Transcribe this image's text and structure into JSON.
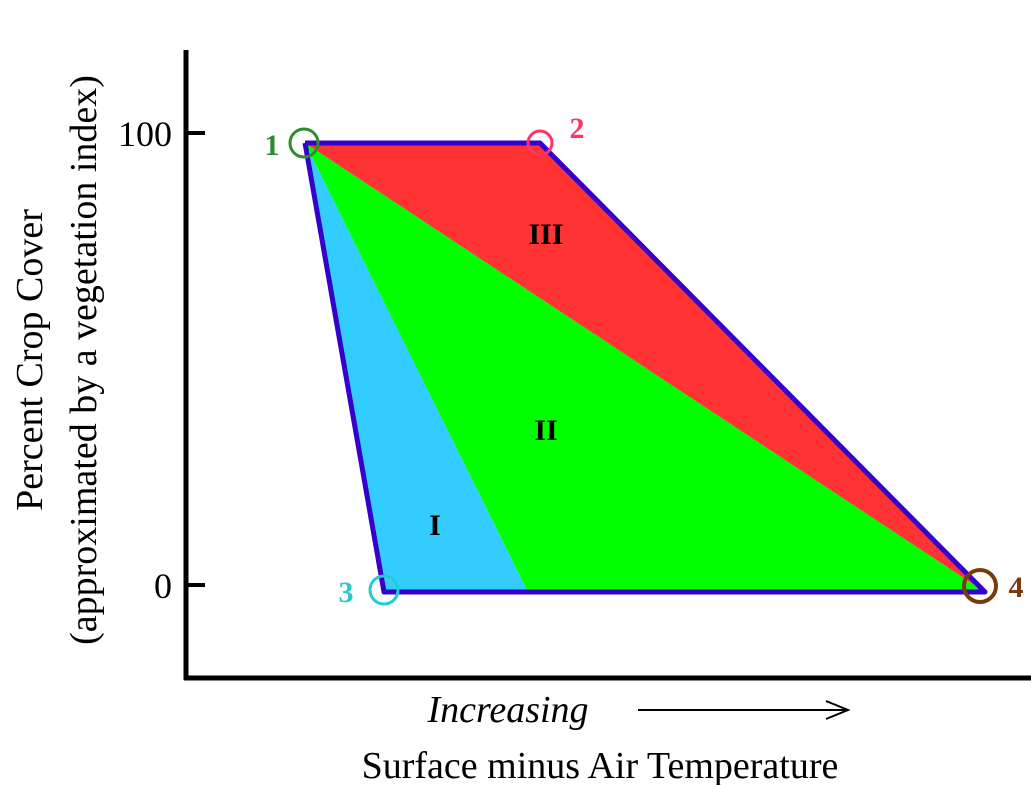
{
  "axes": {
    "y_label_line1": "Percent Crop Cover",
    "y_label_line2": "(approximated by a vegetation index)",
    "x_label_direction": "Increasing",
    "x_label": "Surface minus Air Temperature",
    "y_ticks": [
      "100",
      "0"
    ]
  },
  "regions": {
    "r1": {
      "label": "I",
      "color": "#33ccff"
    },
    "r2": {
      "label": "II",
      "color": "#00ff00"
    },
    "r3": {
      "label": "III",
      "color": "#ff3333"
    }
  },
  "points": {
    "p1": {
      "label": "1",
      "color": "#2e8b2e"
    },
    "p2": {
      "label": "2",
      "color": "#ff3366"
    },
    "p3": {
      "label": "3",
      "color": "#22cccc"
    },
    "p4": {
      "label": "4",
      "color": "#7a3a10"
    }
  },
  "outline_color": "#3300cc"
}
